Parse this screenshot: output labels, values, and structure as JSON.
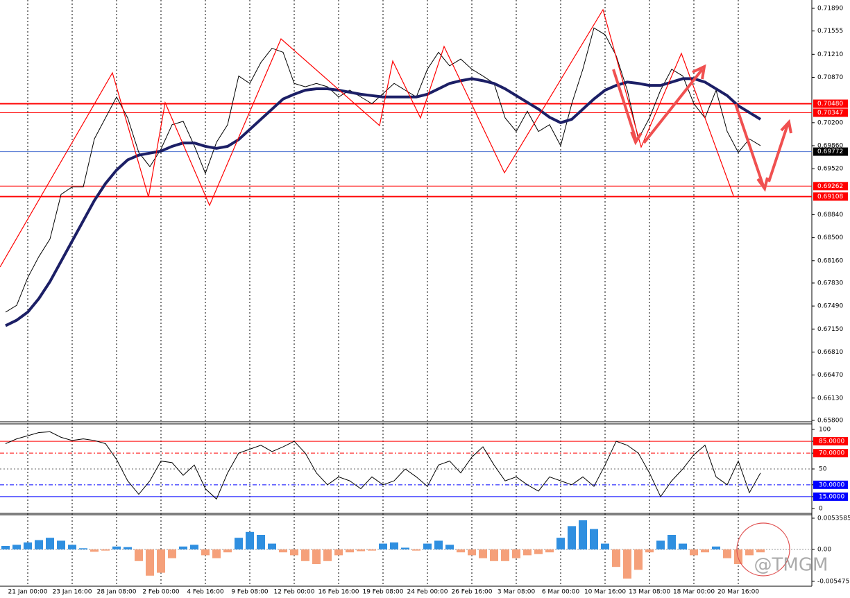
{
  "chart_data": [
    {
      "type": "line",
      "categories": [
        null,
        null,
        "21 Jan 00:00",
        null,
        null,
        null,
        "23 Jan 16:00",
        null,
        null,
        null,
        "28 Jan 08:00",
        null,
        null,
        null,
        "2 Feb 00:00",
        null,
        null,
        null,
        "4 Feb 16:00",
        null,
        null,
        null,
        "9 Feb 08:00",
        null,
        null,
        null,
        "12 Feb 00:00",
        null,
        null,
        null,
        "16 Feb 16:00",
        null,
        null,
        null,
        "19 Feb 08:00",
        null,
        null,
        null,
        "24 Feb 00:00",
        null,
        null,
        null,
        "26 Feb 16:00",
        null,
        null,
        null,
        "3 Mar 08:00",
        null,
        null,
        null,
        "6 Mar 00:00",
        null,
        null,
        null,
        "10 Mar 16:00",
        null,
        null,
        null,
        "13 Mar 08:00",
        null,
        null,
        null,
        "18 Mar 00:00",
        null,
        null,
        null,
        "20 Mar 16:00",
        null,
        null,
        null,
        null,
        null,
        null
      ],
      "series": [
        {
          "color": "#000000",
          "values": [
            0.674,
            0.675,
            0.6791,
            0.6822,
            0.6848,
            0.6914,
            0.6925,
            0.6925,
            0.6996,
            0.7027,
            0.7058,
            0.7027,
            0.6976,
            0.6955,
            0.6981,
            0.7017,
            0.7022,
            0.6986,
            0.6945,
            0.6991,
            0.7017,
            0.7089,
            0.7078,
            0.7109,
            0.713,
            0.7124,
            0.7078,
            0.7073,
            0.7078,
            0.7073,
            0.7058,
            0.7068,
            0.7058,
            0.7048,
            0.7063,
            0.7078,
            0.7068,
            0.7058,
            0.7099,
            0.7124,
            0.7104,
            0.7114,
            0.7099,
            0.7089,
            0.7078,
            0.7027,
            0.7007,
            0.7037,
            0.7007,
            0.7017,
            0.6986,
            0.7048,
            0.7099,
            0.716,
            0.715,
            0.7119,
            0.7068,
            0.6996,
            0.7027,
            0.7068,
            0.7099,
            0.7089,
            0.7048,
            0.7027,
            0.7068,
            0.7007,
            0.6976,
            0.6996,
            0.6986,
            null,
            null,
            null,
            null
          ]
        },
        {
          "color": "#1c1f66",
          "values": [
            0.672,
            0.6728,
            0.674,
            0.676,
            0.6785,
            0.6815,
            0.6845,
            0.6875,
            0.6905,
            0.693,
            0.695,
            0.6965,
            0.6972,
            0.6975,
            0.6978,
            0.6985,
            0.699,
            0.699,
            0.6985,
            0.6982,
            0.6985,
            0.6995,
            0.701,
            0.7025,
            0.704,
            0.7055,
            0.7062,
            0.7068,
            0.707,
            0.707,
            0.7068,
            0.7065,
            0.7062,
            0.706,
            0.7058,
            0.7058,
            0.7058,
            0.7058,
            0.7062,
            0.707,
            0.7078,
            0.7082,
            0.7085,
            0.7082,
            0.7078,
            0.707,
            0.706,
            0.705,
            0.704,
            0.7028,
            0.702,
            0.7025,
            0.704,
            0.7055,
            0.7068,
            0.7075,
            0.708,
            0.7078,
            0.7075,
            0.7075,
            0.708,
            0.7085,
            0.7085,
            0.708,
            0.707,
            0.706,
            0.7045,
            0.7035,
            0.7025,
            null,
            null,
            null,
            null
          ]
        }
      ],
      "ylim": [
        0.65779,
        0.72013
      ],
      "yticks": [
        {
          "value": 0.7189,
          "label": "0.71890"
        },
        {
          "value": 0.71555,
          "label": "0.71555"
        },
        {
          "value": 0.7121,
          "label": "0.71210"
        },
        {
          "value": 0.7087,
          "label": "0.70870"
        },
        {
          "value": 0.702,
          "label": "0.70200"
        },
        {
          "value": 0.6986,
          "label": "0.69860"
        },
        {
          "value": 0.6952,
          "label": "0.69520"
        },
        {
          "value": 0.6884,
          "label": "0.68840"
        },
        {
          "value": 0.685,
          "label": "0.68500"
        },
        {
          "value": 0.6816,
          "label": "0.68160"
        },
        {
          "value": 0.6783,
          "label": "0.67830"
        },
        {
          "value": 0.6749,
          "label": "0.67490"
        },
        {
          "value": 0.6715,
          "label": "0.67150"
        },
        {
          "value": 0.6681,
          "label": "0.66810"
        },
        {
          "value": 0.6647,
          "label": "0.66470"
        },
        {
          "value": 0.6613,
          "label": "0.66130"
        },
        {
          "value": 0.658,
          "label": "0.65800"
        }
      ],
      "levels": [
        {
          "value": 0.7048,
          "label": "0.70480",
          "color": "#ff0000"
        },
        {
          "value": 0.70347,
          "label": "0.70347",
          "color": "#ff0000"
        },
        {
          "value": 0.69772,
          "label": "0.69772",
          "color": "#000000"
        },
        {
          "value": 0.69262,
          "label": "0.69262",
          "color": "#ff0000"
        },
        {
          "value": 0.69108,
          "label": "0.69108",
          "color": "#ff0000"
        }
      ],
      "grid": true
    },
    {
      "type": "line",
      "values": [
        82,
        88,
        92,
        96,
        97,
        90,
        86,
        88,
        86,
        82,
        62,
        35,
        18,
        35,
        60,
        58,
        42,
        55,
        25,
        12,
        45,
        70,
        75,
        80,
        72,
        78,
        85,
        70,
        45,
        30,
        40,
        35,
        25,
        40,
        30,
        35,
        50,
        40,
        28,
        55,
        60,
        45,
        65,
        78,
        55,
        35,
        40,
        30,
        22,
        40,
        35,
        30,
        40,
        28,
        55,
        85,
        80,
        70,
        45,
        15,
        35,
        50,
        68,
        80,
        40,
        30,
        60,
        20,
        45
      ],
      "color": "#000000",
      "ylim": [
        -6.1,
        106.1
      ],
      "yticks": [
        100,
        {
          "value": 85,
          "label": "85.0000",
          "color": "#ff0000"
        },
        {
          "value": 70,
          "label": "70.0000",
          "color": "#ff0000"
        },
        50,
        {
          "value": 30,
          "label": "30.0000",
          "color": "#0000ff"
        },
        {
          "value": 15,
          "label": "15.0000",
          "color": "#0000ff"
        },
        0
      ]
    },
    {
      "type": "bar",
      "values": [
        0.0006,
        0.0008,
        0.0012,
        0.0016,
        0.002,
        0.0015,
        0.0008,
        0.0002,
        -0.0004,
        -0.0002,
        0.0005,
        0.0004,
        -0.002,
        -0.0045,
        -0.004,
        -0.0015,
        0.0005,
        0.0008,
        -0.001,
        -0.0015,
        -0.0005,
        0.002,
        0.003,
        0.0025,
        0.001,
        -0.0005,
        -0.001,
        -0.002,
        -0.0025,
        -0.002,
        -0.001,
        -0.0005,
        -0.0003,
        -0.0002,
        0.001,
        0.0012,
        0.0003,
        -0.0002,
        0.001,
        0.0015,
        0.0008,
        -0.0005,
        -0.001,
        -0.0015,
        -0.002,
        -0.002,
        -0.0015,
        -0.001,
        -0.0008,
        -0.0005,
        0.002,
        0.004,
        0.005,
        0.0035,
        0.001,
        -0.003,
        -0.005,
        -0.0035,
        -0.0005,
        0.0015,
        0.0025,
        0.001,
        -0.001,
        -0.0005,
        0.0005,
        -0.0015,
        -0.0025,
        -0.001,
        -0.0005
      ],
      "colors": [
        "#2f8fe0",
        "#f5a07a"
      ],
      "ylim": [
        -0.00631,
        0.00595
      ],
      "yticks": [
        0.0053585,
        {
          "value": 0,
          "label": "0.00"
        },
        -0.005475
      ]
    }
  ],
  "watermark": "@TMGM"
}
